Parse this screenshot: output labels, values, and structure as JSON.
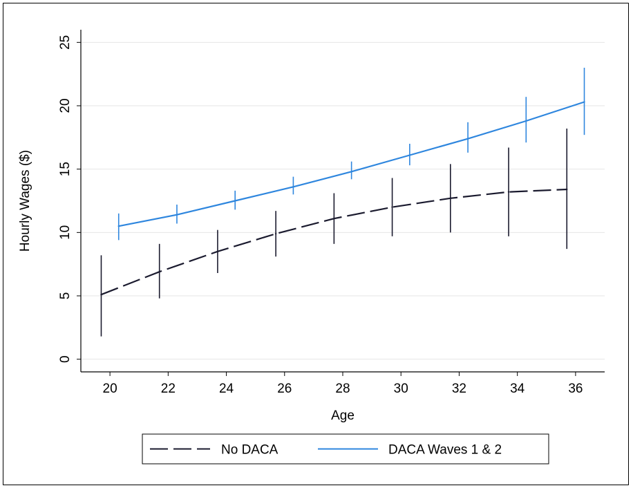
{
  "chart_data": {
    "type": "line",
    "title": "",
    "xlabel": "Age",
    "ylabel": "Hourly Wages ($)",
    "xlim": [
      19,
      37
    ],
    "ylim": [
      -1,
      26
    ],
    "xticks": [
      20,
      22,
      24,
      26,
      28,
      30,
      32,
      34,
      36
    ],
    "yticks": [
      0,
      5,
      10,
      15,
      20,
      25
    ],
    "grid": "horizontal",
    "legend_placement": "bottom",
    "series": [
      {
        "name": "No DACA",
        "color": "#1a1a2e",
        "style": "dashed",
        "x": [
          19.7,
          21.7,
          23.7,
          25.7,
          27.7,
          29.7,
          31.7,
          33.7,
          35.7
        ],
        "y": [
          5.1,
          6.9,
          8.5,
          9.9,
          11.1,
          12.0,
          12.7,
          13.2,
          13.4
        ],
        "ci_low": [
          1.8,
          4.8,
          6.8,
          8.1,
          9.1,
          9.7,
          10.0,
          9.7,
          8.7
        ],
        "ci_high": [
          8.2,
          9.1,
          10.2,
          11.7,
          13.1,
          14.3,
          15.4,
          16.7,
          18.2
        ]
      },
      {
        "name": "DACA Waves 1 & 2",
        "color": "#2e86de",
        "style": "solid",
        "x": [
          20.3,
          22.3,
          24.3,
          26.3,
          28.3,
          30.3,
          32.3,
          34.3,
          36.3
        ],
        "y": [
          10.5,
          11.4,
          12.5,
          13.6,
          14.8,
          16.1,
          17.4,
          18.8,
          20.3
        ],
        "ci_low": [
          9.4,
          10.7,
          11.8,
          13.0,
          14.2,
          15.3,
          16.3,
          17.1,
          17.7
        ],
        "ci_high": [
          11.5,
          12.2,
          13.3,
          14.4,
          15.6,
          17.0,
          18.7,
          20.7,
          23.0
        ]
      }
    ]
  }
}
